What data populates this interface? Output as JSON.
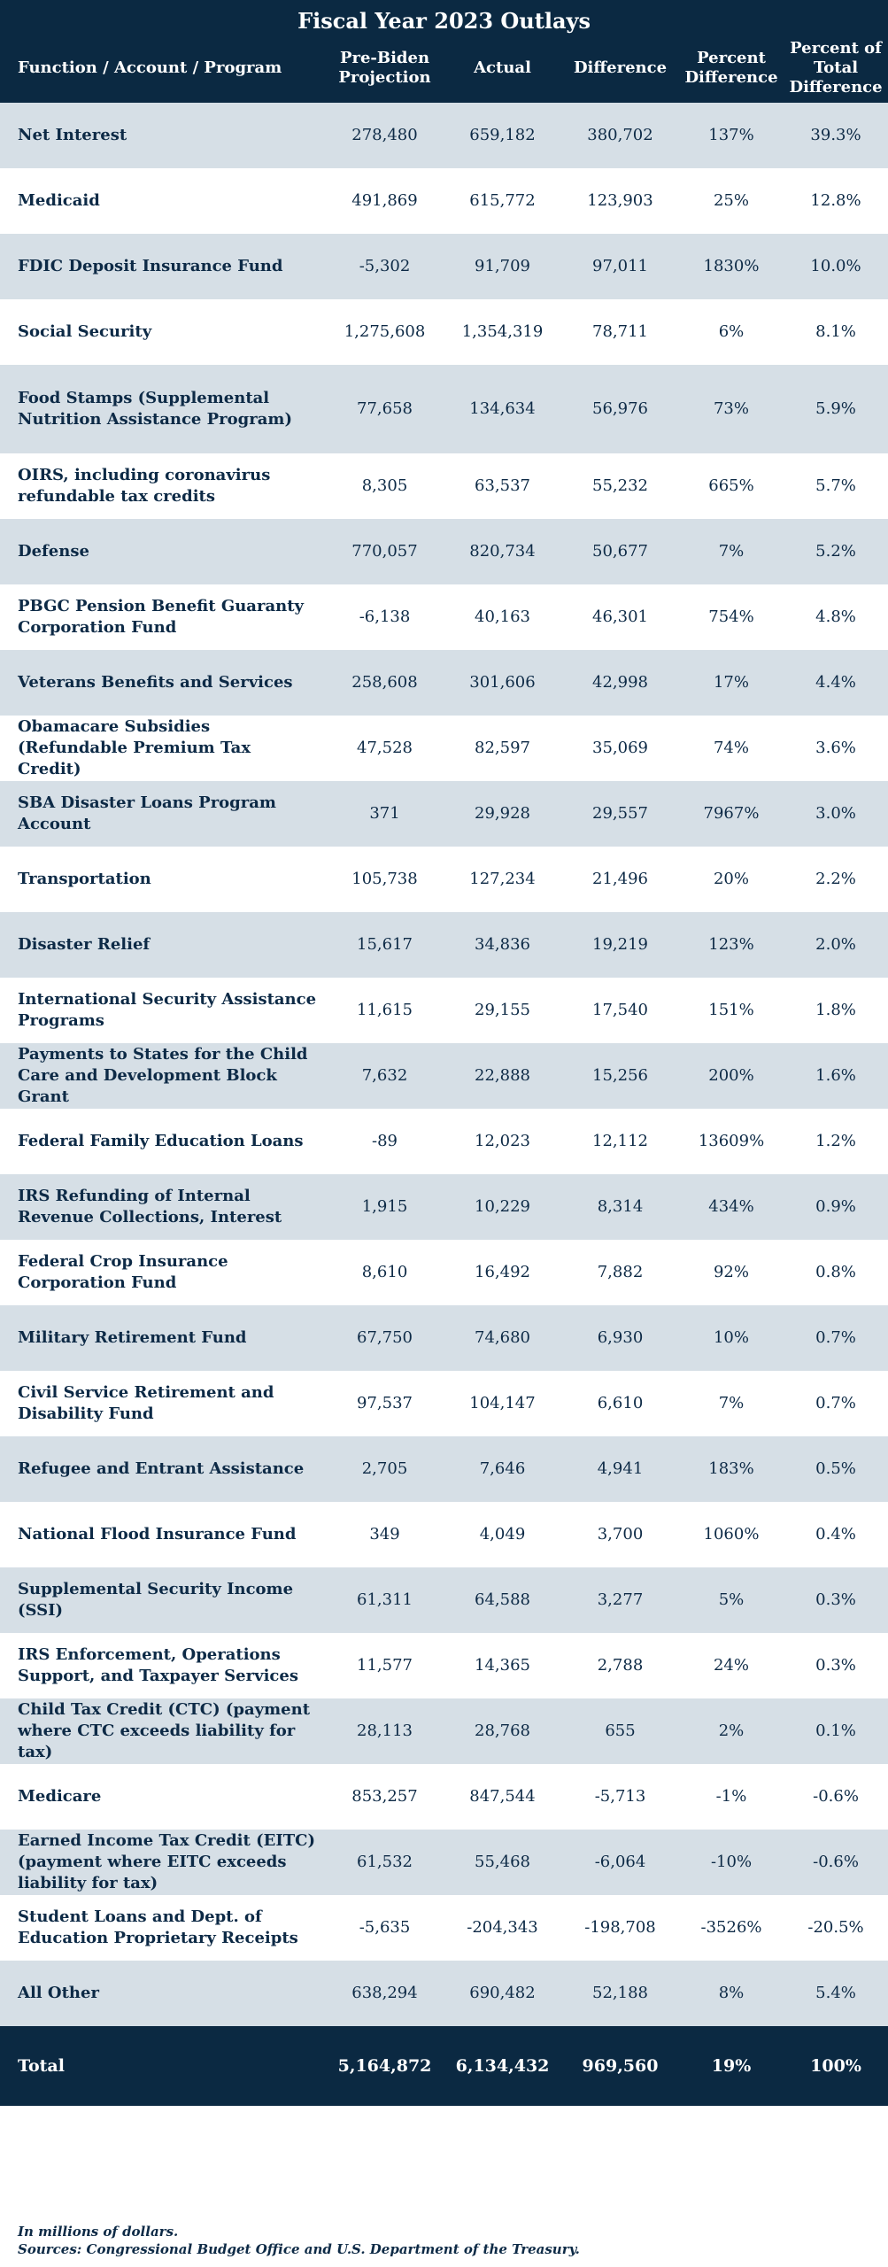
{
  "table": {
    "title": "Fiscal Year 2023 Outlays",
    "headers": {
      "function": "Function / Account / Program",
      "projection": "Pre-Biden Projection",
      "actual": "Actual",
      "difference": "Difference",
      "percent_difference": "Percent Difference",
      "percent_total": "Percent of Total Difference"
    },
    "rows": [
      {
        "label": "Net Interest",
        "projection": "278,480",
        "actual": "659,182",
        "difference": "380,702",
        "pct": "137%",
        "share": "39.3%"
      },
      {
        "label": "Medicaid",
        "projection": "491,869",
        "actual": "615,772",
        "difference": "123,903",
        "pct": "25%",
        "share": "12.8%"
      },
      {
        "label": "FDIC Deposit Insurance Fund",
        "projection": "-5,302",
        "actual": "91,709",
        "difference": "97,011",
        "pct": "1830%",
        "share": "10.0%"
      },
      {
        "label": "Social Security",
        "projection": "1,275,608",
        "actual": "1,354,319",
        "difference": "78,711",
        "pct": "6%",
        "share": "8.1%"
      },
      {
        "label": "Food Stamps (Supplemental Nutrition Assistance Program)",
        "projection": "77,658",
        "actual": "134,634",
        "difference": "56,976",
        "pct": "73%",
        "share": "5.9%"
      },
      {
        "label": "OIRS, including coronavirus refundable tax credits",
        "projection": "8,305",
        "actual": "63,537",
        "difference": "55,232",
        "pct": "665%",
        "share": "5.7%"
      },
      {
        "label": "Defense",
        "projection": "770,057",
        "actual": "820,734",
        "difference": "50,677",
        "pct": "7%",
        "share": "5.2%"
      },
      {
        "label": "PBGC Pension Benefit Guaranty Corporation Fund",
        "projection": "-6,138",
        "actual": "40,163",
        "difference": "46,301",
        "pct": "754%",
        "share": "4.8%"
      },
      {
        "label": "Veterans Benefits and Services",
        "projection": "258,608",
        "actual": "301,606",
        "difference": "42,998",
        "pct": "17%",
        "share": "4.4%"
      },
      {
        "label": "Obamacare Subsidies (Refundable Premium Tax Credit)",
        "projection": "47,528",
        "actual": "82,597",
        "difference": "35,069",
        "pct": "74%",
        "share": "3.6%"
      },
      {
        "label": "SBA Disaster Loans Program Account",
        "projection": "371",
        "actual": "29,928",
        "difference": "29,557",
        "pct": "7967%",
        "share": "3.0%"
      },
      {
        "label": "Transportation",
        "projection": "105,738",
        "actual": "127,234",
        "difference": "21,496",
        "pct": "20%",
        "share": "2.2%"
      },
      {
        "label": "Disaster Relief",
        "projection": "15,617",
        "actual": "34,836",
        "difference": "19,219",
        "pct": "123%",
        "share": "2.0%"
      },
      {
        "label": "International Security Assistance Programs",
        "projection": "11,615",
        "actual": "29,155",
        "difference": "17,540",
        "pct": "151%",
        "share": "1.8%"
      },
      {
        "label": "Payments to States for the Child Care and Development Block Grant",
        "projection": "7,632",
        "actual": "22,888",
        "difference": "15,256",
        "pct": "200%",
        "share": "1.6%"
      },
      {
        "label": "Federal Family Education Loans",
        "projection": "-89",
        "actual": "12,023",
        "difference": "12,112",
        "pct": "13609%",
        "share": "1.2%"
      },
      {
        "label": "IRS Refunding of Internal Revenue Collections, Interest",
        "projection": "1,915",
        "actual": "10,229",
        "difference": "8,314",
        "pct": "434%",
        "share": "0.9%"
      },
      {
        "label": "Federal Crop Insurance Corporation Fund",
        "projection": "8,610",
        "actual": "16,492",
        "difference": "7,882",
        "pct": "92%",
        "share": "0.8%"
      },
      {
        "label": "Military Retirement Fund",
        "projection": "67,750",
        "actual": "74,680",
        "difference": "6,930",
        "pct": "10%",
        "share": "0.7%"
      },
      {
        "label": "Civil Service Retirement and Disability Fund",
        "projection": "97,537",
        "actual": "104,147",
        "difference": "6,610",
        "pct": "7%",
        "share": "0.7%"
      },
      {
        "label": "Refugee and Entrant Assistance",
        "projection": "2,705",
        "actual": "7,646",
        "difference": "4,941",
        "pct": "183%",
        "share": "0.5%"
      },
      {
        "label": "National Flood Insurance Fund",
        "projection": "349",
        "actual": "4,049",
        "difference": "3,700",
        "pct": "1060%",
        "share": "0.4%"
      },
      {
        "label": "Supplemental Security Income (SSI)",
        "projection": "61,311",
        "actual": "64,588",
        "difference": "3,277",
        "pct": "5%",
        "share": "0.3%"
      },
      {
        "label": "IRS Enforcement, Operations Support, and Taxpayer Services",
        "projection": "11,577",
        "actual": "14,365",
        "difference": "2,788",
        "pct": "24%",
        "share": "0.3%"
      },
      {
        "label": "Child Tax Credit (CTC) (payment where CTC exceeds liability for tax)",
        "projection": "28,113",
        "actual": "28,768",
        "difference": "655",
        "pct": "2%",
        "share": "0.1%"
      },
      {
        "label": "Medicare",
        "projection": "853,257",
        "actual": "847,544",
        "difference": "-5,713",
        "pct": "-1%",
        "share": "-0.6%"
      },
      {
        "label": "Earned Income Tax Credit (EITC) (payment where EITC exceeds liability for tax)",
        "projection": "61,532",
        "actual": "55,468",
        "difference": "-6,064",
        "pct": "-10%",
        "share": "-0.6%"
      },
      {
        "label": "Student Loans and Dept. of Education Proprietary Receipts",
        "projection": "-5,635",
        "actual": "-204,343",
        "difference": "-198,708",
        "pct": "-3526%",
        "share": "-20.5%"
      },
      {
        "label": "All Other",
        "projection": "638,294",
        "actual": "690,482",
        "difference": "52,188",
        "pct": "8%",
        "share": "5.4%"
      }
    ],
    "total": {
      "label": "Total",
      "projection": "5,164,872",
      "actual": "6,134,432",
      "difference": "969,560",
      "pct": "19%",
      "share": "100%"
    }
  },
  "notes": {
    "units": "In millions of dollars.",
    "sources": "Sources: Congressional Budget Office and U.S. Department of the Treasury."
  },
  "colors": {
    "header_bg": "#0b2942",
    "stripe_bg": "#d6dfe6",
    "text": "#0d2a46"
  }
}
